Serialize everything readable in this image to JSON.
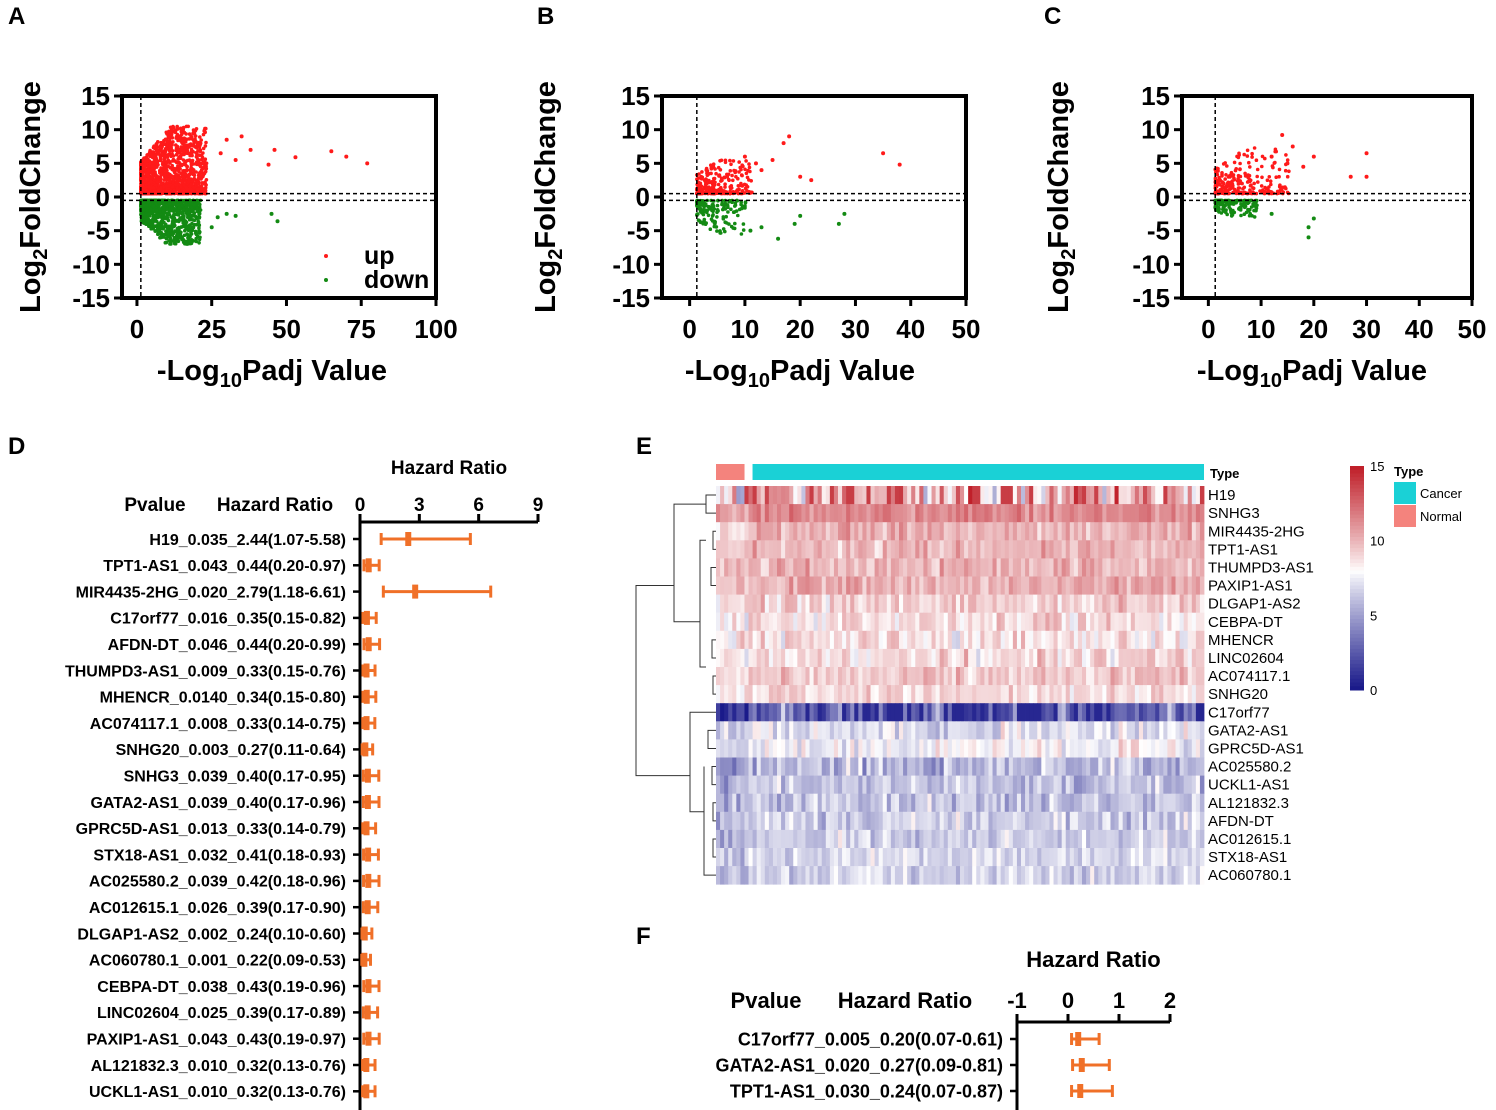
{
  "panels": {
    "A": "A",
    "B": "B",
    "C": "C",
    "D": "D",
    "E": "E",
    "F": "F"
  },
  "colors": {
    "up": "#ff1a1a",
    "down": "#138a13",
    "forest": "#f07028",
    "cancer": "#1ad1d6",
    "normal": "#f4837d",
    "heat_high": "#c0202a",
    "heat_mid": "#ffffff",
    "heat_low": "#1a1a8a"
  },
  "chart_data": [
    {
      "id": "A",
      "type": "scatter",
      "title": "",
      "xlabel_prefix": "-Log",
      "xlabel_sub": "10",
      "xlabel_suffix": "Padj Value",
      "ylabel_prefix": "Log",
      "ylabel_sub": "2",
      "ylabel_suffix": "FoldChange",
      "xlim": [
        -5,
        100
      ],
      "ylim": [
        -15,
        15
      ],
      "xticks": [
        0,
        25,
        50,
        75,
        100
      ],
      "yticks": [
        -15,
        -10,
        -5,
        0,
        5,
        10,
        15
      ],
      "threshold_x": 1.3,
      "threshold_y": [
        0.5,
        -0.5
      ],
      "legend": [
        "up",
        "down"
      ],
      "series": [
        {
          "name": "up",
          "points": [
            [
              46,
              7
            ],
            [
              53,
              5.9
            ],
            [
              65,
              6.8
            ],
            [
              70,
              6
            ],
            [
              77,
              5
            ],
            [
              44,
              4.8
            ],
            [
              35,
              9
            ],
            [
              38,
              7
            ],
            [
              30,
              8.5
            ],
            [
              28,
              6.5
            ],
            [
              33,
              5.5
            ]
          ]
        },
        {
          "name": "down",
          "points": [
            [
              45,
              -2.5
            ],
            [
              47,
              -3.6
            ],
            [
              30,
              -2.5
            ],
            [
              27,
              -3
            ],
            [
              33,
              -2.8
            ],
            [
              25,
              -4.5
            ]
          ]
        }
      ],
      "cloud": {
        "up_x_max": 22,
        "up_y_max": 10,
        "down_x_max": 20,
        "down_y_min": -6.5
      }
    },
    {
      "id": "B",
      "type": "scatter",
      "title": "",
      "xlabel_prefix": "-Log",
      "xlabel_sub": "10",
      "xlabel_suffix": "Padj Value",
      "ylabel_prefix": "Log",
      "ylabel_sub": "2",
      "ylabel_suffix": "FoldChange",
      "xlim": [
        -5,
        50
      ],
      "ylim": [
        -15,
        15
      ],
      "xticks": [
        0,
        10,
        20,
        30,
        40,
        50
      ],
      "yticks": [
        -15,
        -10,
        -5,
        0,
        5,
        10,
        15
      ],
      "threshold_x": 1.3,
      "threshold_y": [
        0.5,
        -0.5
      ],
      "series": [
        {
          "name": "up",
          "points": [
            [
              18,
              9
            ],
            [
              17,
              8
            ],
            [
              35,
              6.5
            ],
            [
              38,
              4.8
            ],
            [
              15,
              5.5
            ],
            [
              13,
              4
            ],
            [
              12,
              5
            ],
            [
              20,
              3
            ],
            [
              22,
              2.5
            ],
            [
              10,
              6
            ]
          ]
        },
        {
          "name": "down",
          "points": [
            [
              28,
              -2.5
            ],
            [
              27,
              -4
            ],
            [
              20,
              -2.8
            ],
            [
              19,
              -4
            ],
            [
              16,
              -6.2
            ],
            [
              13,
              -4.5
            ],
            [
              11,
              -5
            ]
          ]
        }
      ],
      "cloud": {
        "up_x_max": 10,
        "up_y_max": 5,
        "down_x_max": 9,
        "down_y_min": -5
      }
    },
    {
      "id": "C",
      "type": "scatter",
      "title": "",
      "xlabel_prefix": "-Log",
      "xlabel_sub": "10",
      "xlabel_suffix": "Padj Value",
      "ylabel_prefix": "Log",
      "ylabel_sub": "2",
      "ylabel_suffix": "FoldChange",
      "xlim": [
        -5,
        50
      ],
      "ylim": [
        -15,
        15
      ],
      "xticks": [
        0,
        10,
        20,
        30,
        40,
        50
      ],
      "yticks": [
        -15,
        -10,
        -5,
        0,
        5,
        10,
        15
      ],
      "threshold_x": 1.3,
      "threshold_y": [
        0.5,
        -0.5
      ],
      "series": [
        {
          "name": "up",
          "points": [
            [
              14,
              9.2
            ],
            [
              16,
              7.5
            ],
            [
              20,
              6
            ],
            [
              27,
              3
            ],
            [
              30,
              6.5
            ],
            [
              30,
              3
            ],
            [
              18,
              4.5
            ],
            [
              12,
              6
            ],
            [
              15,
              5
            ]
          ]
        },
        {
          "name": "down",
          "points": [
            [
              20,
              -3.2
            ],
            [
              19,
              -6
            ],
            [
              19,
              -4.5
            ],
            [
              12,
              -2.5
            ],
            [
              9,
              -2
            ]
          ]
        }
      ],
      "cloud": {
        "up_x_max": 14,
        "up_y_max": 7,
        "down_x_max": 8,
        "down_y_min": -2.5
      }
    },
    {
      "id": "D",
      "type": "forest",
      "axis_title": "Hazard Ratio",
      "header_pvalue": "Pvalue",
      "header_hr": "Hazard Ratio",
      "xlim": [
        0,
        9
      ],
      "xticks": [
        0,
        3,
        6,
        9
      ],
      "rows": [
        {
          "label": "H19_0.035_2.44(1.07-5.58)",
          "hr": 2.44,
          "lo": 1.07,
          "hi": 5.58
        },
        {
          "label": "TPT1-AS1_0.043_0.44(0.20-0.97)",
          "hr": 0.44,
          "lo": 0.2,
          "hi": 0.97
        },
        {
          "label": "MIR4435-2HG_0.020_2.79(1.18-6.61)",
          "hr": 2.79,
          "lo": 1.18,
          "hi": 6.61
        },
        {
          "label": "C17orf77_0.016_0.35(0.15-0.82)",
          "hr": 0.35,
          "lo": 0.15,
          "hi": 0.82
        },
        {
          "label": "AFDN-DT_0.046_0.44(0.20-0.99)",
          "hr": 0.44,
          "lo": 0.2,
          "hi": 0.99
        },
        {
          "label": "THUMPD3-AS1_0.009_0.33(0.15-0.76)",
          "hr": 0.33,
          "lo": 0.15,
          "hi": 0.76
        },
        {
          "label": "MHENCR_0.0140_0.34(0.15-0.80)",
          "hr": 0.34,
          "lo": 0.15,
          "hi": 0.8
        },
        {
          "label": "AC074117.1_0.008_0.33(0.14-0.75)",
          "hr": 0.33,
          "lo": 0.14,
          "hi": 0.75
        },
        {
          "label": "SNHG20_0.003_0.27(0.11-0.64)",
          "hr": 0.27,
          "lo": 0.11,
          "hi": 0.64
        },
        {
          "label": "SNHG3_0.039_0.40(0.17-0.95)",
          "hr": 0.4,
          "lo": 0.17,
          "hi": 0.95
        },
        {
          "label": "GATA2-AS1_0.039_0.40(0.17-0.96)",
          "hr": 0.4,
          "lo": 0.17,
          "hi": 0.96
        },
        {
          "label": "GPRC5D-AS1_0.013_0.33(0.14-0.79)",
          "hr": 0.33,
          "lo": 0.14,
          "hi": 0.79
        },
        {
          "label": "STX18-AS1_0.032_0.41(0.18-0.93)",
          "hr": 0.41,
          "lo": 0.18,
          "hi": 0.93
        },
        {
          "label": "AC025580.2_0.039_0.42(0.18-0.96)",
          "hr": 0.42,
          "lo": 0.18,
          "hi": 0.96
        },
        {
          "label": "AC012615.1_0.026_0.39(0.17-0.90)",
          "hr": 0.39,
          "lo": 0.17,
          "hi": 0.9
        },
        {
          "label": "DLGAP1-AS2_0.002_0.24(0.10-0.60)",
          "hr": 0.24,
          "lo": 0.1,
          "hi": 0.6
        },
        {
          "label": "AC060780.1_0.001_0.22(0.09-0.53)",
          "hr": 0.22,
          "lo": 0.09,
          "hi": 0.53
        },
        {
          "label": "CEBPA-DT_0.038_0.43(0.19-0.96)",
          "hr": 0.43,
          "lo": 0.19,
          "hi": 0.96
        },
        {
          "label": "LINC02604_0.025_0.39(0.17-0.89)",
          "hr": 0.39,
          "lo": 0.17,
          "hi": 0.89
        },
        {
          "label": "PAXIP1-AS1_0.043_0.43(0.19-0.97)",
          "hr": 0.43,
          "lo": 0.19,
          "hi": 0.97
        },
        {
          "label": "AL121832.3_0.010_0.32(0.13-0.76)",
          "hr": 0.32,
          "lo": 0.13,
          "hi": 0.76
        },
        {
          "label": "UCKL1-AS1_0.010_0.32(0.13-0.76)",
          "hr": 0.32,
          "lo": 0.13,
          "hi": 0.76
        }
      ]
    },
    {
      "id": "E",
      "type": "heatmap",
      "annotation_label": "Type",
      "legend_title": "Type",
      "legend_items": [
        "Cancer",
        "Normal"
      ],
      "scale_ticks": [
        15,
        10,
        5,
        0
      ],
      "value_range": [
        0,
        15
      ],
      "normal_fraction": 0.066,
      "genes": [
        {
          "name": "H19",
          "mean": 9.5,
          "sd": 3.5
        },
        {
          "name": "SNHG3",
          "mean": 11.5,
          "sd": 0.9
        },
        {
          "name": "MIR4435-2HG",
          "mean": 10.2,
          "sd": 1.0
        },
        {
          "name": "TPT1-AS1",
          "mean": 10.0,
          "sd": 1.0
        },
        {
          "name": "THUMPD3-AS1",
          "mean": 10.1,
          "sd": 1.0
        },
        {
          "name": "PAXIP1-AS1",
          "mean": 10.3,
          "sd": 0.9
        },
        {
          "name": "DLGAP1-AS2",
          "mean": 9.2,
          "sd": 1.1
        },
        {
          "name": "CEBPA-DT",
          "mean": 8.8,
          "sd": 1.1
        },
        {
          "name": "MHENCR",
          "mean": 8.7,
          "sd": 1.3
        },
        {
          "name": "LINC02604",
          "mean": 8.9,
          "sd": 1.2
        },
        {
          "name": "AC074117.1",
          "mean": 9.3,
          "sd": 1.0
        },
        {
          "name": "SNHG20",
          "mean": 9.0,
          "sd": 0.9
        },
        {
          "name": "C17orf77",
          "mean": 3.0,
          "sd": 2.2
        },
        {
          "name": "GATA2-AS1",
          "mean": 7.0,
          "sd": 1.4
        },
        {
          "name": "GPRC5D-AS1",
          "mean": 7.8,
          "sd": 1.2
        },
        {
          "name": "AC025580.2",
          "mean": 5.8,
          "sd": 1.4
        },
        {
          "name": "UCKL1-AS1",
          "mean": 6.2,
          "sd": 1.2
        },
        {
          "name": "AL121832.3",
          "mean": 6.1,
          "sd": 1.3
        },
        {
          "name": "AFDN-DT",
          "mean": 6.5,
          "sd": 1.2
        },
        {
          "name": "AC012615.1",
          "mean": 6.6,
          "sd": 1.1
        },
        {
          "name": "STX18-AS1",
          "mean": 6.8,
          "sd": 1.0
        },
        {
          "name": "AC060780.1",
          "mean": 6.7,
          "sd": 1.1
        }
      ]
    },
    {
      "id": "F",
      "type": "forest",
      "axis_title": "Hazard Ratio",
      "header_pvalue": "Pvalue",
      "header_hr": "Hazard Ratio",
      "xlim": [
        -1,
        2
      ],
      "xticks": [
        -1,
        0,
        1,
        2
      ],
      "rows": [
        {
          "label": "C17orf77_0.005_0.20(0.07-0.61)",
          "hr": 0.2,
          "lo": 0.07,
          "hi": 0.61
        },
        {
          "label": "GATA2-AS1_0.020_0.27(0.09-0.81)",
          "hr": 0.27,
          "lo": 0.09,
          "hi": 0.81
        },
        {
          "label": "TPT1-AS1_0.030_0.24(0.07-0.87)",
          "hr": 0.24,
          "lo": 0.07,
          "hi": 0.87
        }
      ]
    }
  ]
}
